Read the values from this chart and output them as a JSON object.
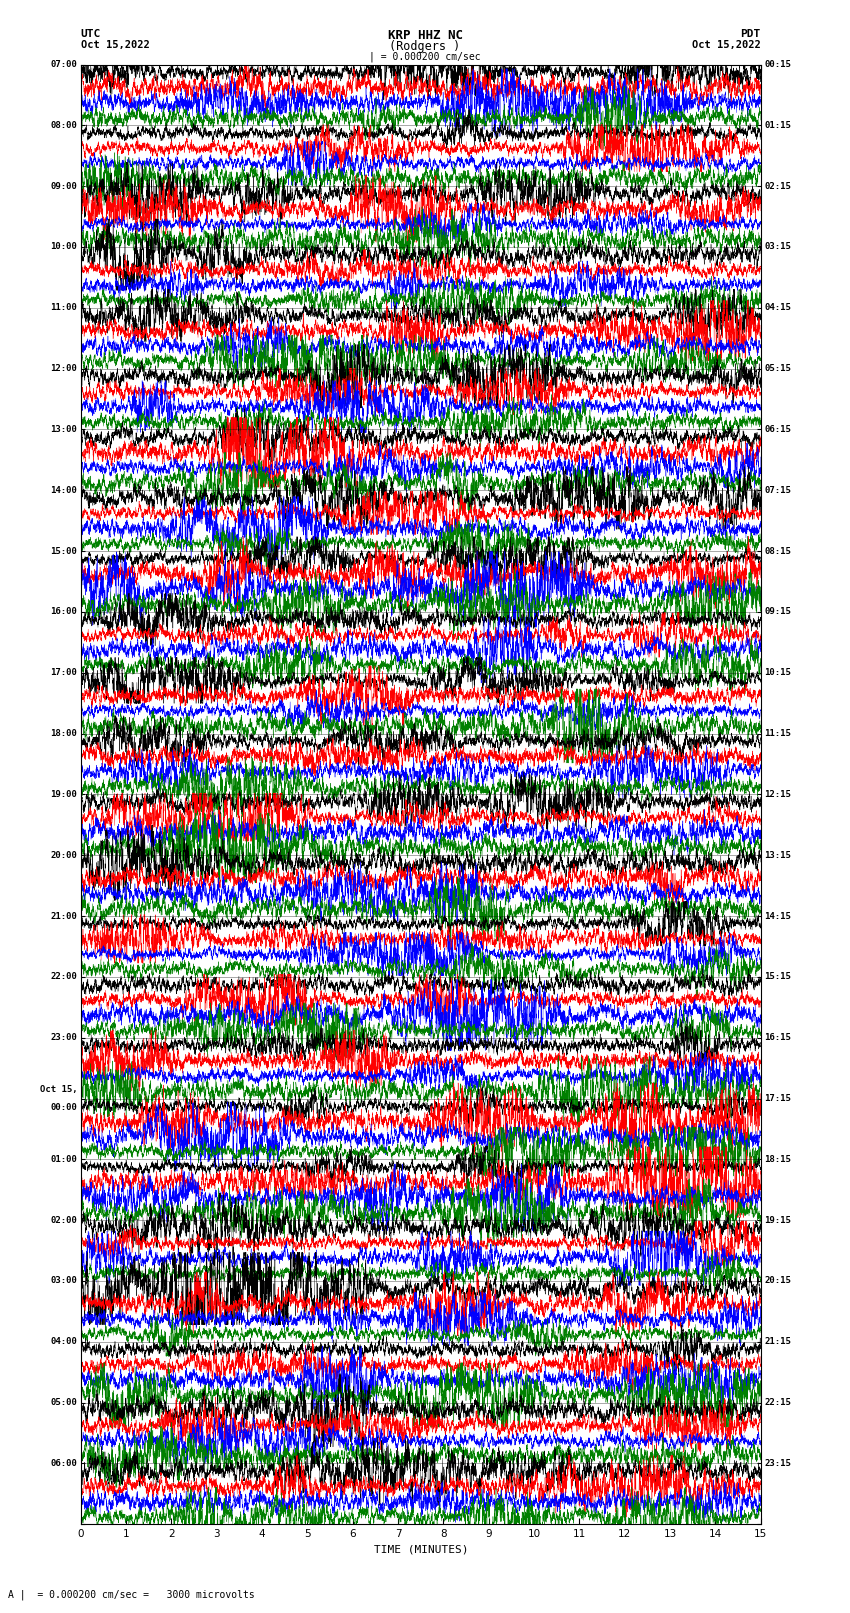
{
  "title_line1": "KRP HHZ NC",
  "title_line2": "(Rodgers )",
  "scale_label": "| = 0.000200 cm/sec",
  "footer_label": "A |  = 0.000200 cm/sec =   3000 microvolts",
  "utc_label": "UTC",
  "utc_date": "Oct 15,2022",
  "pdt_label": "PDT",
  "pdt_date": "Oct 15,2022",
  "xlabel": "TIME (MINUTES)",
  "left_times": [
    "07:00",
    "08:00",
    "09:00",
    "10:00",
    "11:00",
    "12:00",
    "13:00",
    "14:00",
    "15:00",
    "16:00",
    "17:00",
    "18:00",
    "19:00",
    "20:00",
    "21:00",
    "22:00",
    "23:00",
    "Oct 15,\n00:00",
    "01:00",
    "02:00",
    "03:00",
    "04:00",
    "05:00",
    "06:00"
  ],
  "right_times": [
    "00:15",
    "01:15",
    "02:15",
    "03:15",
    "04:15",
    "05:15",
    "06:15",
    "07:15",
    "08:15",
    "09:15",
    "10:15",
    "11:15",
    "12:15",
    "13:15",
    "14:15",
    "15:15",
    "16:15",
    "17:15",
    "18:15",
    "19:15",
    "20:15",
    "21:15",
    "22:15",
    "23:15"
  ],
  "n_rows": 24,
  "traces_per_row": 4,
  "colors": [
    "black",
    "red",
    "blue",
    "green"
  ],
  "bg_color": "white",
  "fig_width": 8.5,
  "fig_height": 16.13,
  "dpi": 100,
  "x_min": 0,
  "x_max": 15,
  "x_ticks": [
    0,
    1,
    2,
    3,
    4,
    5,
    6,
    7,
    8,
    9,
    10,
    11,
    12,
    13,
    14,
    15
  ]
}
